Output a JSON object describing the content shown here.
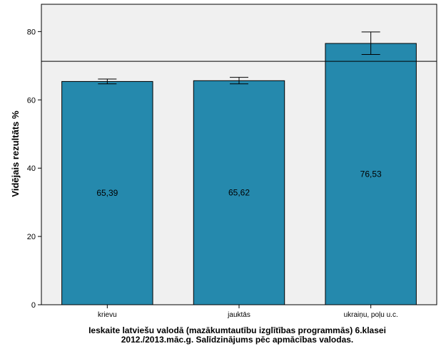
{
  "chart_data": {
    "type": "bar",
    "title": "",
    "xlabel": "",
    "ylabel": "Vidējais rezultāts %",
    "categories": [
      "krievu",
      "jauktās",
      "ukraiņu, poļu u.c."
    ],
    "values": [
      65.39,
      65.62,
      76.53
    ],
    "value_labels": [
      "65,39",
      "65,62",
      "76,53"
    ],
    "error_bars": [
      {
        "low": 64.7,
        "high": 66.1
      },
      {
        "low": 64.7,
        "high": 66.6
      },
      {
        "low": 73.3,
        "high": 79.9
      }
    ],
    "reference_line": 71.3,
    "ylim": [
      0,
      88
    ],
    "yticks": [
      0,
      20,
      40,
      60,
      80
    ],
    "caption_lines": [
      "Ieskaite latviešu valodā (mazākumtautību izglītības programmās) 6.klasei",
      "2012./2013.māc.g. Salīdzinājums pēc apmācības valodas."
    ],
    "colors": {
      "bar": "#2589ad",
      "bar_stroke": "#000000",
      "plot_background": "#f0f0f0",
      "reference_line": "#000000"
    }
  }
}
